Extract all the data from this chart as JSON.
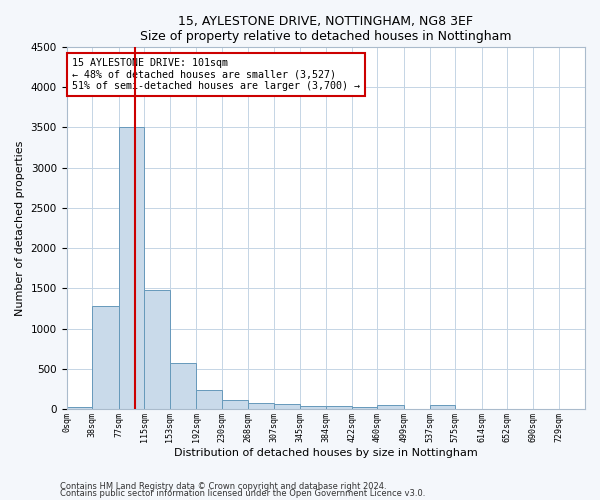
{
  "title": "15, AYLESTONE DRIVE, NOTTINGHAM, NG8 3EF",
  "subtitle": "Size of property relative to detached houses in Nottingham",
  "xlabel": "Distribution of detached houses by size in Nottingham",
  "ylabel": "Number of detached properties",
  "bin_edges": [
    0,
    38,
    77,
    115,
    153,
    192,
    230,
    268,
    307,
    345,
    384,
    422,
    460,
    499,
    537,
    575,
    614,
    652,
    690,
    729,
    767
  ],
  "bar_heights": [
    30,
    1280,
    3500,
    1480,
    570,
    240,
    120,
    80,
    60,
    45,
    35,
    30,
    50,
    0,
    55,
    0,
    0,
    0,
    0,
    0
  ],
  "bar_color": "#c9daea",
  "bar_edge_color": "#6699bb",
  "property_size": 101,
  "vline_color": "#cc0000",
  "ylim": [
    0,
    4500
  ],
  "yticks": [
    0,
    500,
    1000,
    1500,
    2000,
    2500,
    3000,
    3500,
    4000,
    4500
  ],
  "annotation_line1": "15 AYLESTONE DRIVE: 101sqm",
  "annotation_line2": "← 48% of detached houses are smaller (3,527)",
  "annotation_line3": "51% of semi-detached houses are larger (3,700) →",
  "annotation_box_color": "#cc0000",
  "footnote1": "Contains HM Land Registry data © Crown copyright and database right 2024.",
  "footnote2": "Contains public sector information licensed under the Open Government Licence v3.0.",
  "background_color": "#f4f7fb",
  "plot_background_color": "#ffffff",
  "grid_color": "#c5d5e5"
}
